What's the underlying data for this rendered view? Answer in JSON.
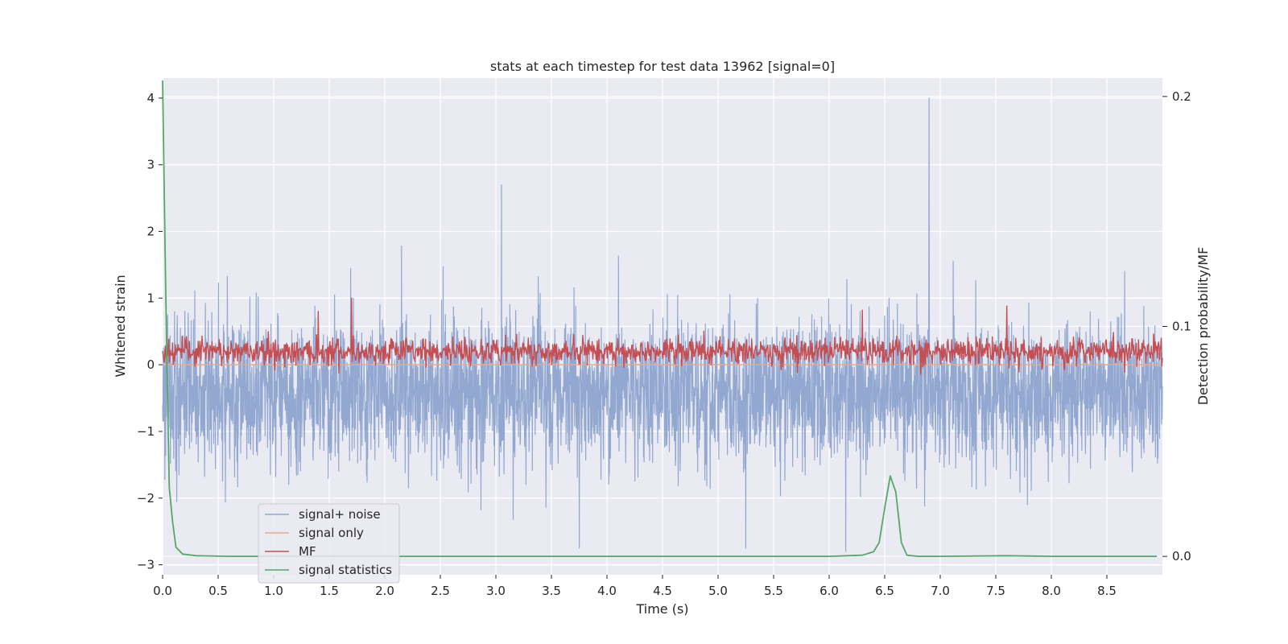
{
  "chart_data": {
    "type": "line",
    "title": "stats at each timestep for test data 13962 [signal=0]",
    "xlabel": "Time (s)",
    "ylabel": "Whitened strain",
    "ylabel_right": "Detection probability/MF",
    "xlim": [
      0.0,
      9.0
    ],
    "ylim": [
      -3.15,
      4.3
    ],
    "ylim_right": [
      -0.008,
      0.208
    ],
    "x_ticks": [
      0.0,
      0.5,
      1.0,
      1.5,
      2.0,
      2.5,
      3.0,
      3.5,
      4.0,
      4.5,
      5.0,
      5.5,
      6.0,
      6.5,
      7.0,
      7.5,
      8.0,
      8.5
    ],
    "x_tick_labels": [
      "0.0",
      "0.5",
      "1.0",
      "1.5",
      "2.0",
      "2.5",
      "3.0",
      "3.5",
      "4.0",
      "4.5",
      "5.0",
      "5.5",
      "6.0",
      "6.5",
      "7.0",
      "7.5",
      "8.0",
      "8.5"
    ],
    "y_ticks": [
      -3,
      -2,
      -1,
      0,
      1,
      2,
      3,
      4
    ],
    "y_tick_labels": [
      "−3",
      "−2",
      "−1",
      "0",
      "1",
      "2",
      "3",
      "4"
    ],
    "y_right_ticks": [
      0.0,
      0.1,
      0.2
    ],
    "y_right_tick_labels": [
      "0.0",
      "0.1",
      "0.2"
    ],
    "grid": true,
    "legend_position": "lower-left",
    "series": [
      {
        "name": "signal+ noise",
        "axis": "left",
        "color": "#92a8d1",
        "kind": "noise",
        "approx_mean": -0.4,
        "approx_std": 0.55,
        "peaks": [
          {
            "x": 6.9,
            "y": 4.0
          },
          {
            "x": 3.05,
            "y": 2.7
          },
          {
            "x": 6.15,
            "y": -2.8
          },
          {
            "x": 5.25,
            "y": -2.75
          },
          {
            "x": 3.75,
            "y": -2.75
          }
        ]
      },
      {
        "name": "signal only",
        "axis": "left",
        "color": "#e9a98a",
        "x": [
          0.0,
          9.0
        ],
        "y": [
          0.0,
          0.0
        ]
      },
      {
        "name": "MF",
        "axis": "left",
        "color": "#c44e52",
        "kind": "noise",
        "approx_mean": 0.2,
        "approx_std": 0.1,
        "peaks": [
          {
            "x": 1.7,
            "y": 1.0
          },
          {
            "x": 1.4,
            "y": 0.8
          },
          {
            "x": 6.3,
            "y": 0.82
          },
          {
            "x": 7.6,
            "y": 0.88
          }
        ]
      },
      {
        "name": "signal statistics",
        "axis": "right",
        "color": "#55a868",
        "x": [
          0.0,
          0.02,
          0.04,
          0.06,
          0.09,
          0.12,
          0.18,
          0.3,
          0.6,
          6.0,
          6.3,
          6.4,
          6.45,
          6.5,
          6.55,
          6.6,
          6.65,
          6.7,
          6.8,
          7.0,
          7.6,
          8.0,
          8.95
        ],
        "y": [
          0.207,
          0.14,
          0.08,
          0.03,
          0.015,
          0.004,
          0.001,
          0.0003,
          0.0,
          0.0,
          0.0005,
          0.002,
          0.006,
          0.021,
          0.035,
          0.028,
          0.006,
          0.0005,
          0.0,
          0.0,
          0.0003,
          0.0,
          0.0
        ]
      }
    ]
  }
}
